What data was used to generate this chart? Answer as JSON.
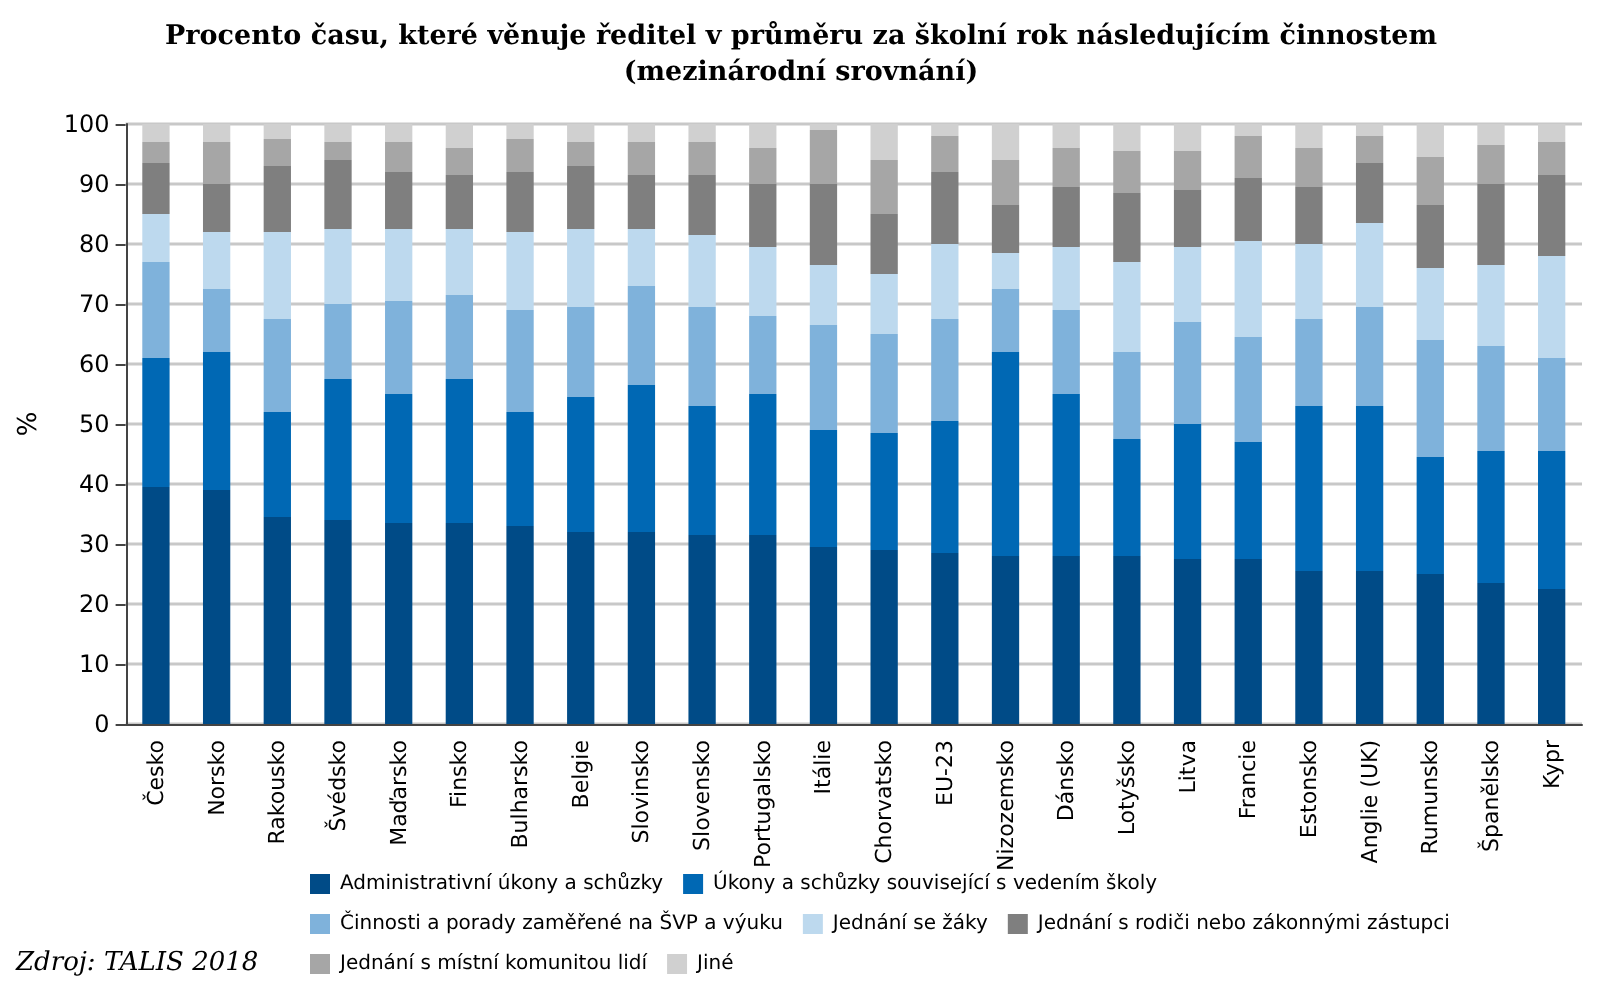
{
  "chart_data": {
    "type": "bar",
    "stacked": true,
    "title": "Procento času, které věnuje ředitel v průměru za školní rok následujícím činnostem\n(mezinárodní srovnání)",
    "ylabel": "%",
    "annotations": [
      "Zdroj: TALIS 2018"
    ],
    "categories": [
      "Česko",
      "Norsko",
      "Rakousko",
      "Švédsko",
      "Maďarsko",
      "Finsko",
      "Bulharsko",
      "Belgie",
      "Slovinsko",
      "Slovensko",
      "Portugalsko",
      "Itálie",
      "Chorvatsko",
      "EU-23",
      "Nizozemsko",
      "Dánsko",
      "Lotyšsko",
      "Litva",
      "Francie",
      "Estonsko",
      "Anglie (UK)",
      "Rumunsko",
      "Španělsko",
      "Kypr"
    ],
    "series": [
      {
        "name": "Administrativní úkony a schůzky",
        "color": "#004b87",
        "values": [
          39.5,
          39,
          34.5,
          34,
          33.5,
          33.5,
          33,
          32,
          32,
          31.5,
          31.5,
          29.5,
          29,
          28.5,
          28,
          28,
          28,
          27.5,
          27.5,
          25.5,
          25.5,
          25,
          23.5,
          22.5
        ]
      },
      {
        "name": "Úkony a schůzky související s vedením školy",
        "color": "#0068b4",
        "values": [
          21.5,
          23,
          17.5,
          23.5,
          21.5,
          24,
          19,
          22.5,
          24.5,
          21.5,
          23.5,
          19.5,
          19.5,
          22,
          34,
          27,
          19.5,
          22.5,
          19.5,
          27.5,
          27.5,
          19.5,
          22,
          23
        ]
      },
      {
        "name": "Činnosti a porady zaměřené na ŠVP a výuku",
        "color": "#7fb2db",
        "values": [
          16,
          10.5,
          15.5,
          12.5,
          15.5,
          14,
          17,
          15,
          16.5,
          16.5,
          13,
          17.5,
          16.5,
          17,
          10.5,
          14,
          14.5,
          17,
          17.5,
          14.5,
          16.5,
          19.5,
          17.5,
          15.5
        ]
      },
      {
        "name": "Jednání se žáky",
        "color": "#bdd9ee",
        "values": [
          8,
          9.5,
          14.5,
          12.5,
          12,
          11,
          13,
          13,
          9.5,
          12,
          11.5,
          10,
          10,
          12.5,
          6,
          10.5,
          15,
          12.5,
          16,
          12.5,
          14,
          12,
          13.5,
          17
        ]
      },
      {
        "name": "Jednání s rodiči nebo zákonnými zástupci",
        "color": "#7f7f7f",
        "values": [
          8.5,
          8,
          11,
          11.5,
          9.5,
          9,
          10,
          10.5,
          9,
          10,
          10.5,
          13.5,
          10,
          12,
          8,
          10,
          11.5,
          9.5,
          10.5,
          9.5,
          10,
          10.5,
          13.5,
          13.5
        ]
      },
      {
        "name": "Jednání s místní komunitou lidí",
        "color": "#a6a6a6",
        "values": [
          3.5,
          7,
          4.5,
          3,
          5,
          4.5,
          5.5,
          4,
          5.5,
          5.5,
          6,
          9,
          9,
          6,
          7.5,
          6.5,
          7,
          6.5,
          7,
          6.5,
          4.5,
          8,
          6.5,
          5.5
        ]
      },
      {
        "name": "Jiné",
        "color": "#d0d0d0",
        "values": [
          3,
          3,
          2.5,
          3,
          3,
          4,
          2.5,
          3,
          3,
          3,
          4,
          1,
          6,
          2,
          6,
          4,
          4.5,
          4.5,
          2,
          4,
          2,
          5.5,
          3.5,
          3
        ]
      }
    ],
    "ylim": [
      0,
      100
    ],
    "yticks": [
      0,
      10,
      20,
      30,
      40,
      50,
      60,
      70,
      80,
      90,
      100
    ],
    "grid": "y",
    "legend": "bottom"
  }
}
